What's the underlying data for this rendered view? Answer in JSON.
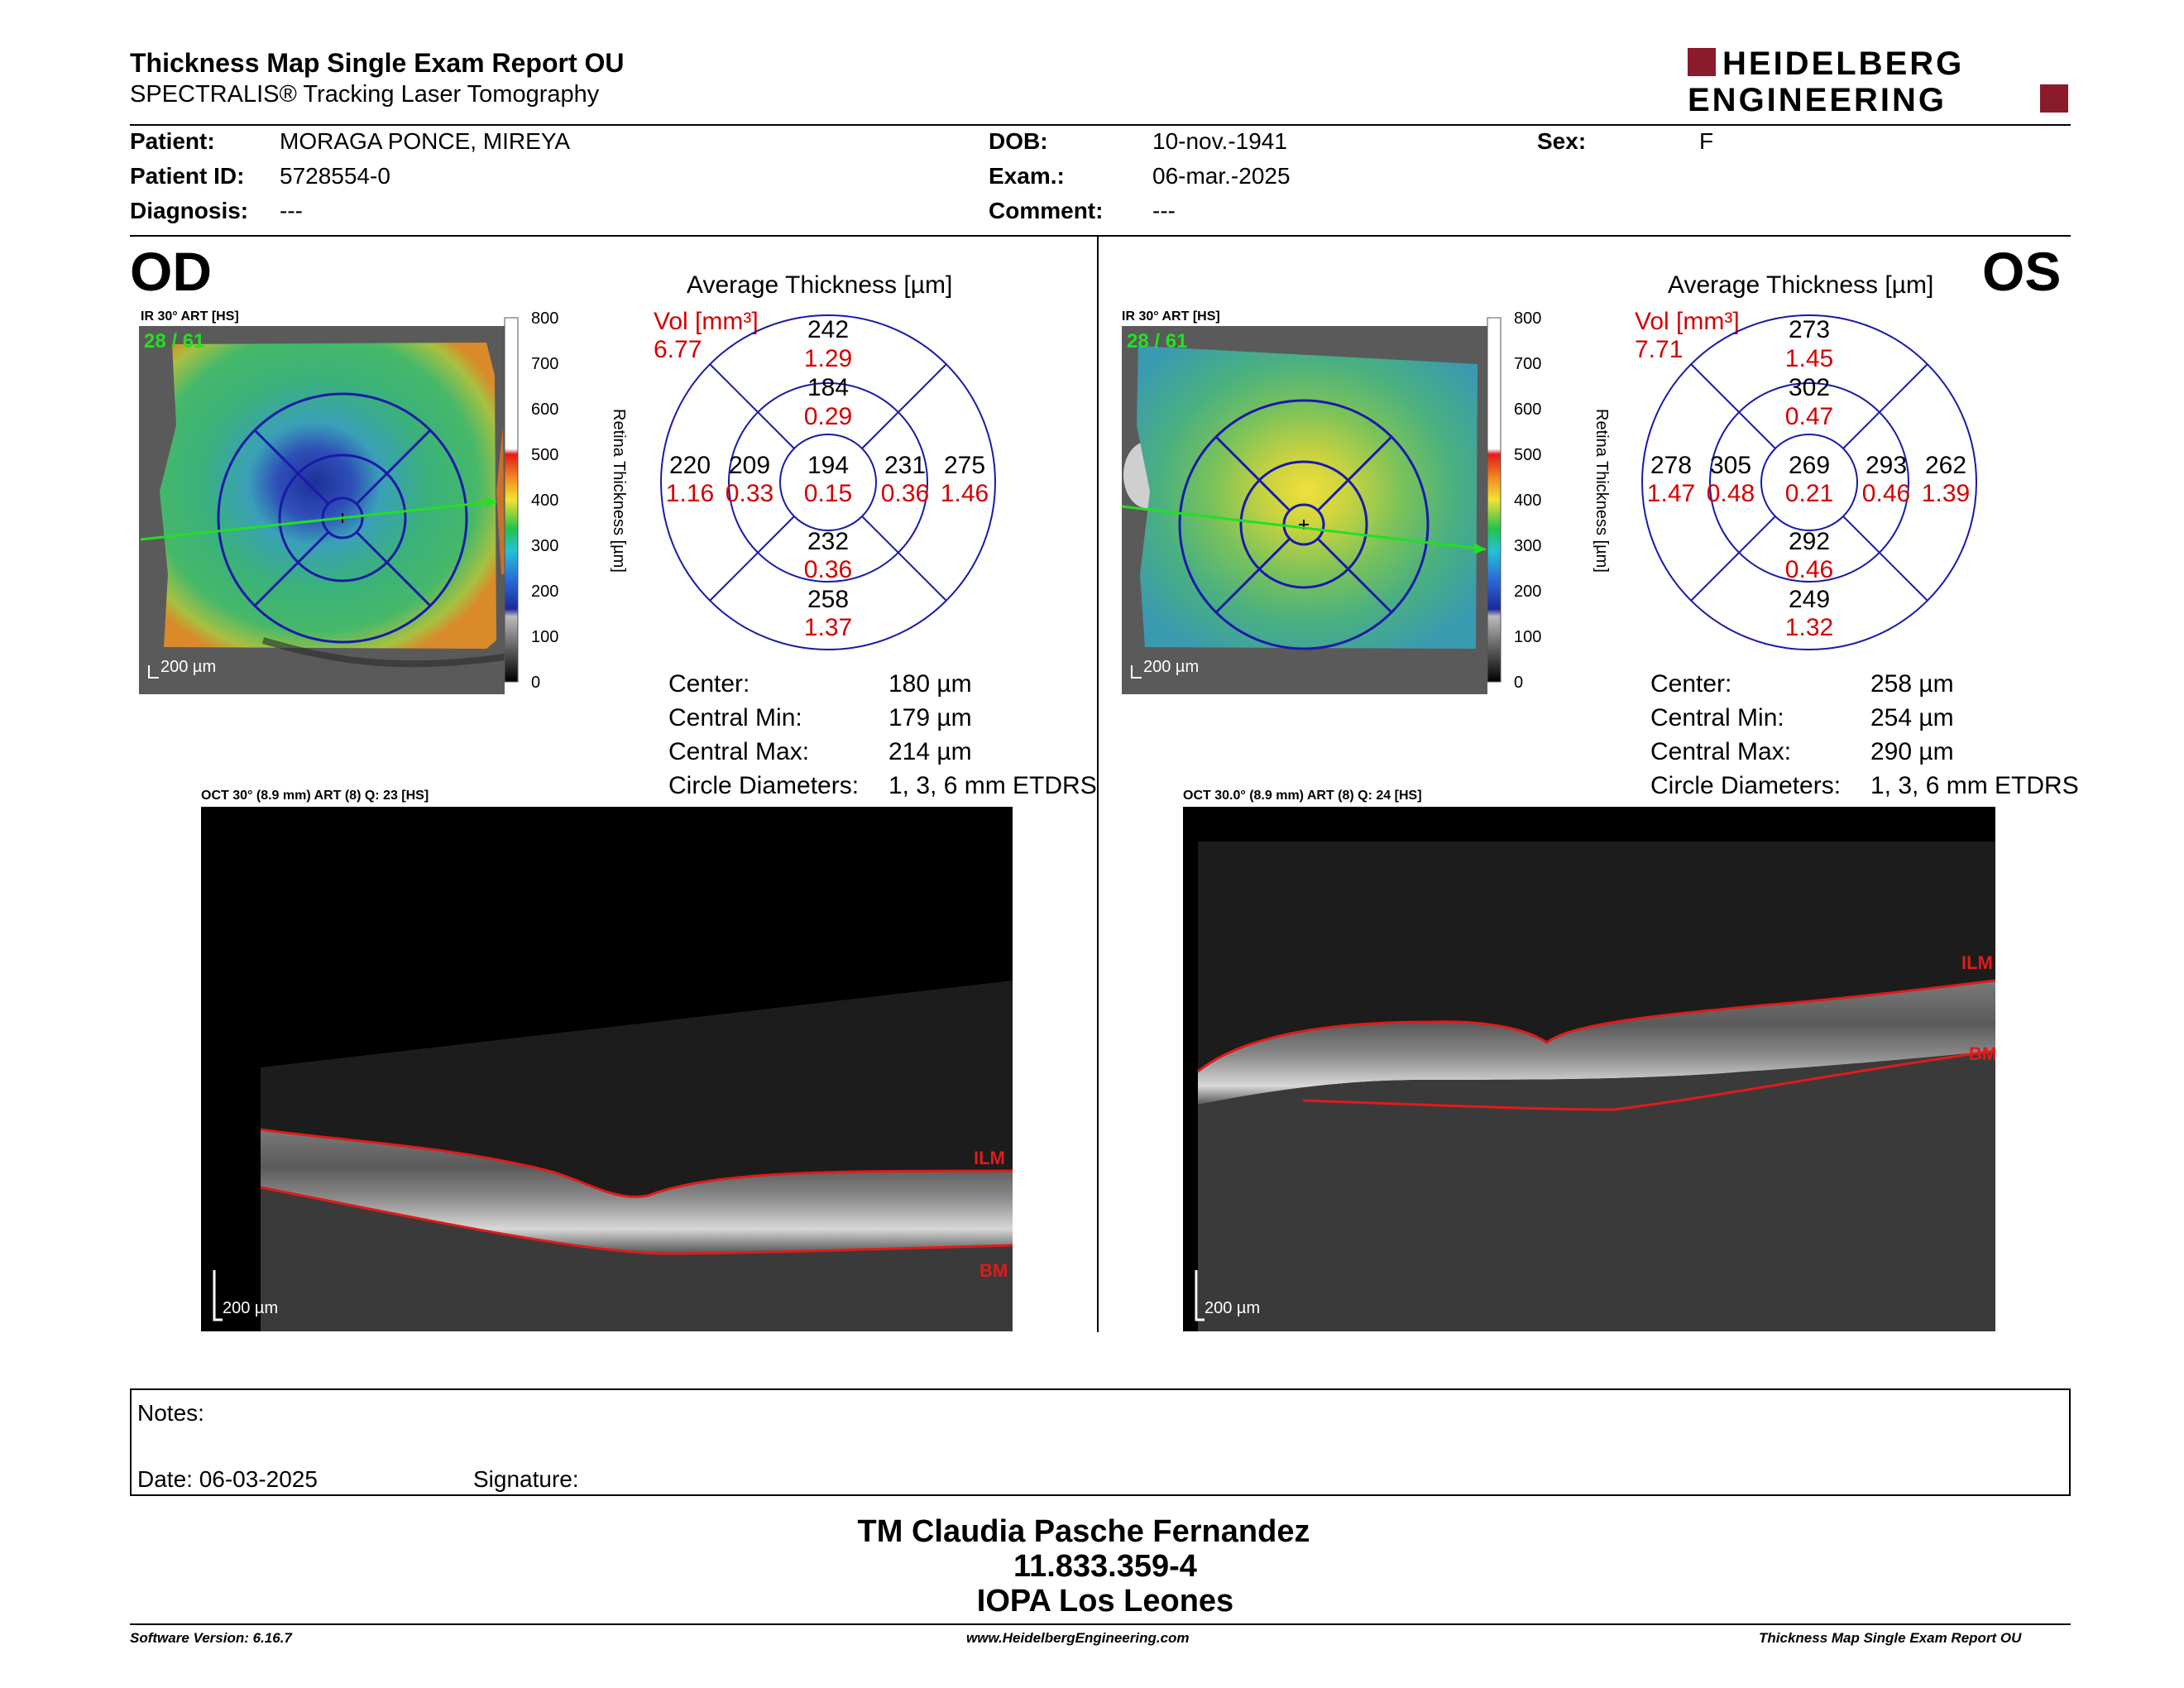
{
  "header": {
    "title": "Thickness Map Single Exam Report OU",
    "subtitle": "SPECTRALIS® Tracking Laser Tomography",
    "logo_line1": "HEIDELBERG",
    "logo_line2": "ENGINEERING"
  },
  "patient": {
    "patient_label": "Patient:",
    "patient_value": "MORAGA PONCE, MIREYA",
    "id_label": "Patient ID:",
    "id_value": "5728554-0",
    "diag_label": "Diagnosis:",
    "diag_value": "---",
    "dob_label": "DOB:",
    "dob_value": "10-nov.-1941",
    "exam_label": "Exam.:",
    "exam_value": "06-mar.-2025",
    "comment_label": "Comment:",
    "comment_value": "---",
    "sex_label": "Sex:",
    "sex_value": "F"
  },
  "od": {
    "eye": "OD",
    "ir_caption": "IR 30° ART [HS]",
    "frames": "28 / 61",
    "scale_bar": "200 µm",
    "avg_title": "Average Thickness [µm]",
    "vol_label": "Vol [mm³]",
    "vol_value": "6.77",
    "grid": {
      "outer_top": [
        "242",
        "1.29"
      ],
      "inner_top": [
        "184",
        "0.29"
      ],
      "outer_left": [
        "220",
        "1.16"
      ],
      "inner_left": [
        "209",
        "0.33"
      ],
      "center": [
        "194",
        "0.15"
      ],
      "inner_right": [
        "231",
        "0.36"
      ],
      "outer_right": [
        "275",
        "1.46"
      ],
      "inner_bottom": [
        "232",
        "0.36"
      ],
      "outer_bottom": [
        "258",
        "1.37"
      ]
    },
    "stats": {
      "center_label": "Center:",
      "center_value": "180 µm",
      "min_label": "Central Min:",
      "min_value": "179 µm",
      "max_label": "Central Max:",
      "max_value": "214 µm",
      "diam_label": "Circle Diameters:",
      "diam_value": "1, 3, 6 mm ETDRS"
    },
    "oct_caption": "OCT 30° (8.9 mm) ART (8) Q: 23 [HS]",
    "oct_scale": "200 µm",
    "ilm": "ILM",
    "bm": "BM"
  },
  "os": {
    "eye": "OS",
    "ir_caption": "IR 30° ART [HS]",
    "frames": "28 / 61",
    "scale_bar": "200 µm",
    "avg_title": "Average Thickness [µm]",
    "vol_label": "Vol [mm³]",
    "vol_value": "7.71",
    "grid": {
      "outer_top": [
        "273",
        "1.45"
      ],
      "inner_top": [
        "302",
        "0.47"
      ],
      "outer_left": [
        "278",
        "1.47"
      ],
      "inner_left": [
        "305",
        "0.48"
      ],
      "center": [
        "269",
        "0.21"
      ],
      "inner_right": [
        "293",
        "0.46"
      ],
      "outer_right": [
        "262",
        "1.39"
      ],
      "inner_bottom": [
        "292",
        "0.46"
      ],
      "outer_bottom": [
        "249",
        "1.32"
      ]
    },
    "stats": {
      "center_label": "Center:",
      "center_value": "258 µm",
      "min_label": "Central Min:",
      "min_value": "254 µm",
      "max_label": "Central Max:",
      "max_value": "290 µm",
      "diam_label": "Circle Diameters:",
      "diam_value": "1, 3, 6 mm ETDRS"
    },
    "oct_caption": "OCT 30.0° (8.9 mm) ART (8) Q: 24 [HS]",
    "oct_scale": "200 µm",
    "ilm": "ILM",
    "bm": "BM"
  },
  "colorbar": {
    "ticks": [
      "800",
      "700",
      "600",
      "500",
      "400",
      "300",
      "200",
      "100",
      "0"
    ],
    "label": "Retina Thickness [µm]"
  },
  "notes": {
    "notes_label": "Notes:",
    "date_label": "Date: 06-03-2025",
    "signature_label": "Signature:"
  },
  "signature_block": {
    "name": "TM Claudia Pasche Fernandez",
    "id": "11.833.359-4",
    "institution": "IOPA Los Leones"
  },
  "footer": {
    "software": "Software Version: 6.16.7",
    "url": "www.HeidelbergEngineering.com",
    "report": "Thickness Map Single Exam Report OU"
  },
  "colors": {
    "red": "#d40000",
    "grid_blue": "#1a1aa8",
    "logo_red": "#8b1a2b"
  }
}
